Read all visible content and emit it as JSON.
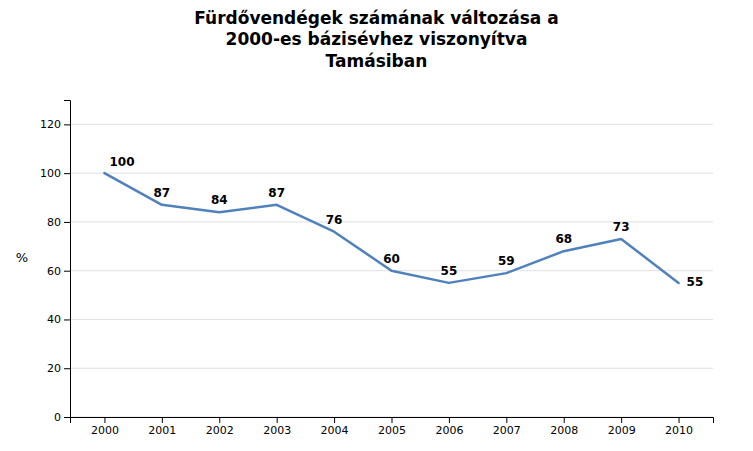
{
  "chart_data": {
    "type": "line",
    "title": "Fürdővendégek számának változása a\n2000-es bázisévhez viszonyítva\nTamásiban",
    "ylabel": "%",
    "x": [
      2000,
      2001,
      2002,
      2003,
      2004,
      2005,
      2006,
      2007,
      2008,
      2009,
      2010
    ],
    "values": [
      100,
      87,
      84,
      87,
      76,
      60,
      55,
      59,
      68,
      73,
      55
    ],
    "color": "#4F81BD",
    "xlim": [
      1999.4,
      2010.6
    ],
    "xticks": [
      2000,
      2001,
      2002,
      2003,
      2004,
      2005,
      2006,
      2007,
      2008,
      2009,
      2010
    ],
    "ylim": [
      0,
      130
    ],
    "yticks": [
      0,
      20,
      40,
      60,
      80,
      100,
      120
    ],
    "grid": true,
    "data_labels": true
  }
}
